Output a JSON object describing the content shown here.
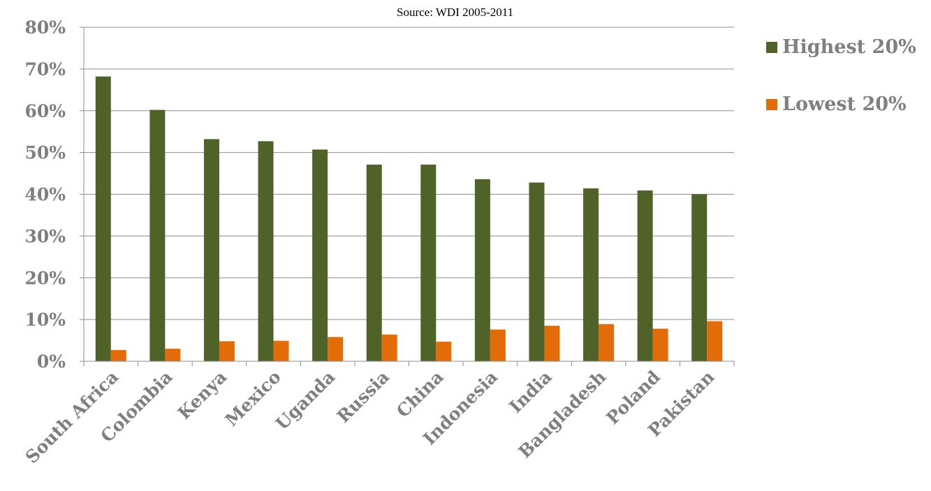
{
  "chart_data": {
    "type": "bar",
    "title": "",
    "subtitle": "Source: WDI 2005-2011",
    "xlabel": "",
    "ylabel": "",
    "ylim": [
      0,
      80
    ],
    "y_ticks": [
      "0%",
      "10%",
      "20%",
      "30%",
      "40%",
      "50%",
      "60%",
      "70%",
      "80%"
    ],
    "grid": true,
    "legend_position": "right",
    "categories": [
      "South Africa",
      "Colombia",
      "Kenya",
      "Mexico",
      "Uganda",
      "Russia",
      "China",
      "Indonesia",
      "India",
      "Bangladesh",
      "Poland",
      "Pakistan"
    ],
    "series": [
      {
        "name": "Highest 20%",
        "color": "#4f6228",
        "values": [
          68.2,
          60.2,
          53.2,
          52.7,
          50.7,
          47.1,
          47.1,
          43.6,
          42.8,
          41.4,
          40.9,
          40.0
        ]
      },
      {
        "name": "Lowest 20%",
        "color": "#e36c09",
        "values": [
          2.7,
          3.0,
          4.8,
          4.9,
          5.8,
          6.4,
          4.7,
          7.6,
          8.5,
          8.9,
          7.8,
          9.6
        ]
      }
    ]
  }
}
